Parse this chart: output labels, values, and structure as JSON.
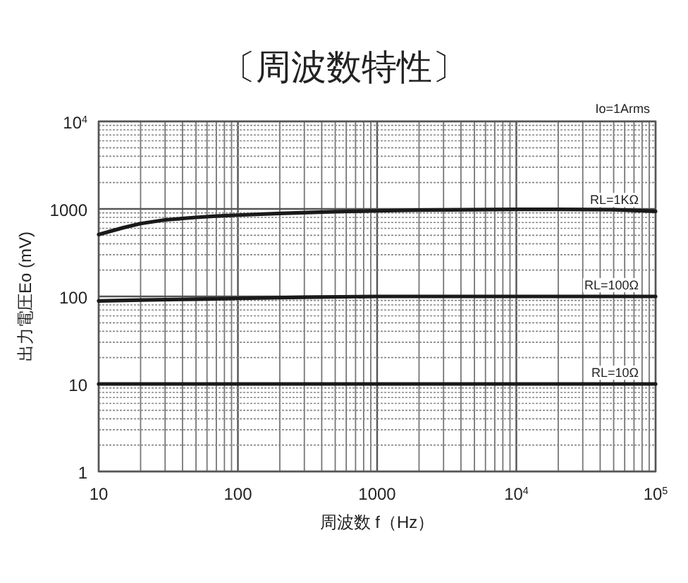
{
  "chart_data": {
    "type": "line",
    "title": "〔周波数特性〕",
    "xlabel": "周波数 f（Hz）",
    "ylabel": "出力電圧Eo (mV)",
    "annotations": [
      "Io=1Arms"
    ],
    "log": "xy",
    "grid": true,
    "xlim": [
      10,
      100000
    ],
    "ylim": [
      1,
      10000
    ],
    "xticks": [
      10,
      100,
      1000,
      {
        "value": 10000,
        "label": "10$^{4}$"
      },
      {
        "value": 100000,
        "label": "10$^{5}$"
      }
    ],
    "yticks": [
      1,
      10,
      100,
      1000,
      {
        "value": 10000,
        "label": "10$^{4}$"
      }
    ],
    "series": [
      {
        "name": "RL=1KΩ",
        "color": "#1a1a1a",
        "x": [
          10,
          15,
          20,
          30,
          50,
          70,
          100,
          200,
          500,
          1000,
          2000,
          5000,
          10000,
          20000,
          50000,
          100000
        ],
        "values": [
          510,
          610,
          680,
          750,
          800,
          830,
          850,
          890,
          930,
          950,
          970,
          980,
          990,
          990,
          980,
          940
        ]
      },
      {
        "name": "RL=100Ω",
        "color": "#1a1a1a",
        "x": [
          10,
          20,
          50,
          100,
          300,
          1000,
          10000,
          100000
        ],
        "values": [
          89,
          91,
          93,
          95,
          98,
          100,
          100,
          100
        ]
      },
      {
        "name": "RL=10Ω",
        "color": "#1a1a1a",
        "x": [
          10,
          100,
          1000,
          10000,
          100000
        ],
        "values": [
          10,
          10,
          10,
          10,
          10
        ]
      }
    ]
  }
}
